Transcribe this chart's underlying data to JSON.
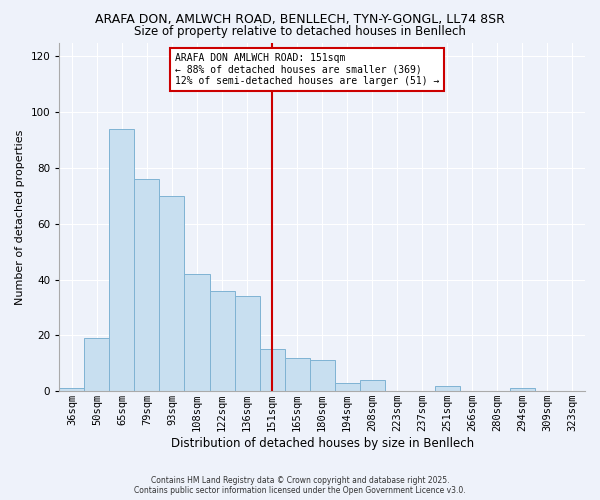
{
  "title": "ARAFA DON, AMLWCH ROAD, BENLLECH, TYN-Y-GONGL, LL74 8SR",
  "subtitle": "Size of property relative to detached houses in Benllech",
  "xlabel": "Distribution of detached houses by size in Benllech",
  "ylabel": "Number of detached properties",
  "bar_color": "#c8dff0",
  "bar_edge_color": "#7fb3d3",
  "vline_x_index": 8,
  "vline_color": "#cc0000",
  "categories": [
    "36sqm",
    "50sqm",
    "65sqm",
    "79sqm",
    "93sqm",
    "108sqm",
    "122sqm",
    "136sqm",
    "151sqm",
    "165sqm",
    "180sqm",
    "194sqm",
    "208sqm",
    "223sqm",
    "237sqm",
    "251sqm",
    "266sqm",
    "280sqm",
    "294sqm",
    "309sqm",
    "323sqm"
  ],
  "values": [
    1,
    19,
    94,
    76,
    70,
    42,
    36,
    34,
    15,
    12,
    11,
    3,
    4,
    0,
    0,
    2,
    0,
    0,
    1,
    0,
    0
  ],
  "ylim": [
    0,
    125
  ],
  "yticks": [
    0,
    20,
    40,
    60,
    80,
    100,
    120
  ],
  "annotation_title": "ARAFA DON AMLWCH ROAD: 151sqm",
  "annotation_line1": "← 88% of detached houses are smaller (369)",
  "annotation_line2": "12% of semi-detached houses are larger (51) →",
  "annotation_box_color": "#ffffff",
  "annotation_box_edge": "#cc0000",
  "footer1": "Contains HM Land Registry data © Crown copyright and database right 2025.",
  "footer2": "Contains public sector information licensed under the Open Government Licence v3.0.",
  "bg_color": "#eef2fa",
  "grid_color": "#ffffff",
  "title_fontsize": 9,
  "subtitle_fontsize": 8.5,
  "ylabel_fontsize": 8,
  "xlabel_fontsize": 8.5,
  "tick_fontsize": 7.5,
  "annot_fontsize": 7,
  "footer_fontsize": 5.5
}
